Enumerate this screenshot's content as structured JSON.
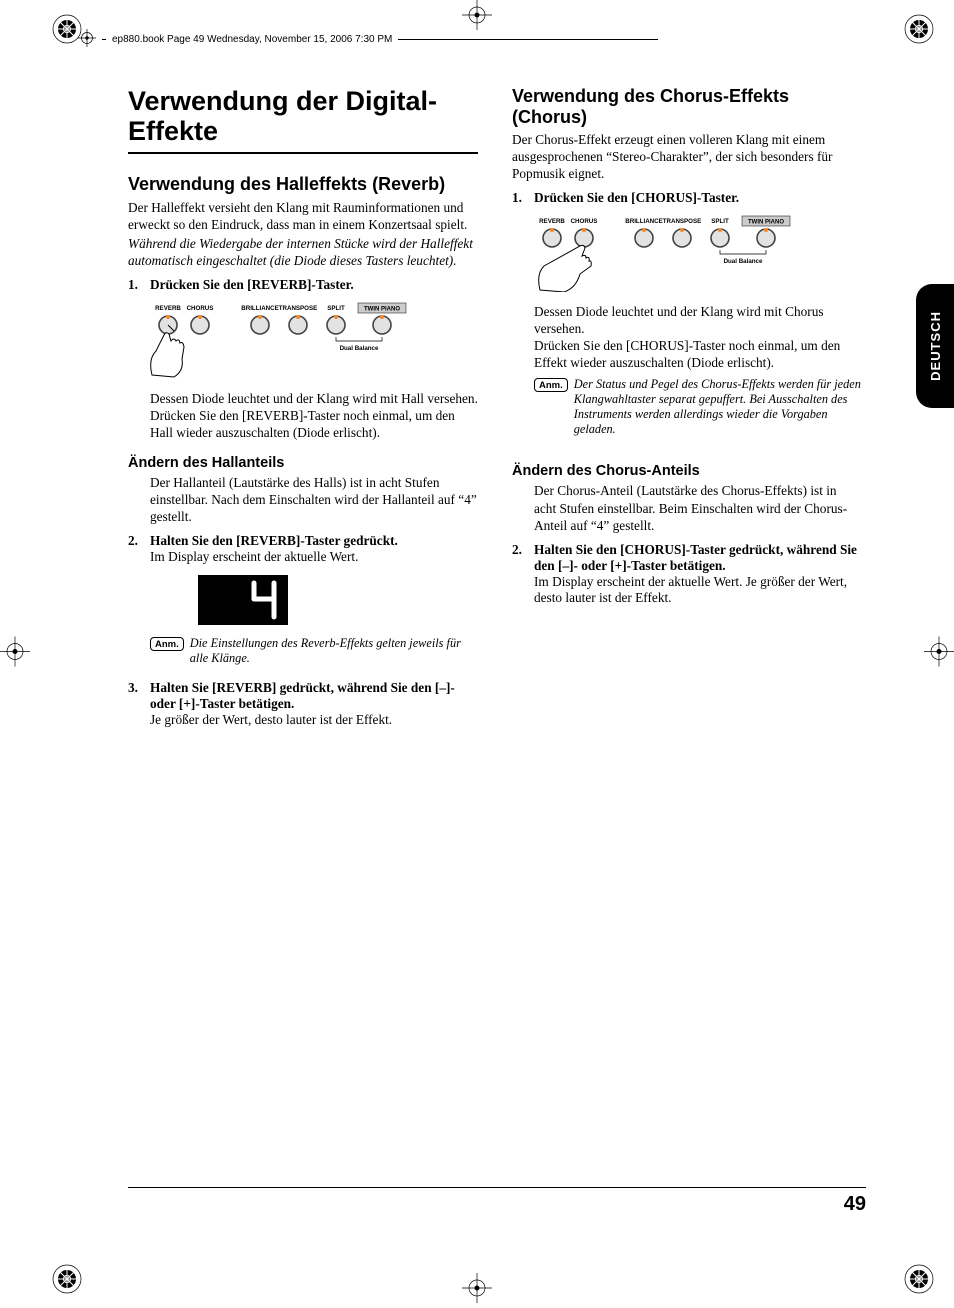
{
  "header_text": "ep880.book  Page 49  Wednesday, November 15, 2006  7:30 PM",
  "lang_tab": "DEUTSCH",
  "page_number": "49",
  "colors": {
    "text": "#000000",
    "bg": "#ffffff",
    "accent": "#000000",
    "button_ring": "#444444",
    "button_face": "#e2e2e2",
    "led_orange": "#f28a2a",
    "twin_box": "#cccccc",
    "display_bg": "#000000",
    "display_fg": "#ffffff"
  },
  "panel": {
    "labels": [
      "REVERB",
      "CHORUS",
      "BRILLIANCE",
      "TRANSPOSE",
      "SPLIT",
      "TWIN PIANO"
    ],
    "sublabel": "Dual Balance",
    "twin_box_label": "TWIN PIANO"
  },
  "display_value": "4",
  "left": {
    "h1": "Verwendung der Digital-Effekte",
    "h2": "Verwendung des Halleffekts (Reverb)",
    "p1": "Der Halleffekt versieht den Klang mit Rauminformationen und erweckt so den Eindruck, dass man in einem Konzertsaal spielt.",
    "p2": "Während die Wiedergabe der internen Stücke wird der Halleffekt automatisch eingeschaltet (die Diode dieses Tasters leuchtet).",
    "s1_label": "1.",
    "s1": "Drücken Sie den [REVERB]-Taster.",
    "after1a": "Dessen Diode leuchtet und der Klang wird mit Hall versehen.",
    "after1b": "Drücken Sie den [REVERB]-Taster noch einmal, um den Hall wieder auszuschalten (Diode erlischt).",
    "h3": "Ändern des Hallanteils",
    "h3p": "Der Hallanteil (Lautstärke des Halls) ist in acht Stufen einstellbar. Nach dem Einschalten wird der Hallanteil auf “4” gestellt.",
    "s2_label": "2.",
    "s2": "Halten Sie den [REVERB]-Taster gedrückt.",
    "s2p": "Im Display erscheint der aktuelle Wert.",
    "note_label": "Anm.",
    "note": "Die Einstellungen des Reverb-Effekts gelten jeweils für alle Klänge.",
    "s3_label": "3.",
    "s3": "Halten Sie [REVERB] gedrückt, während Sie den [–]- oder [+]-Taster betätigen.",
    "s3p": "Je größer der Wert, desto lauter ist der Effekt."
  },
  "right": {
    "h2": "Verwendung des Chorus-Effekts (Chorus)",
    "p1": "Der Chorus-Effekt erzeugt einen volleren Klang mit einem ausgesprochenen “Stereo-Charakter”, der sich besonders für Popmusik eignet.",
    "s1_label": "1.",
    "s1": "Drücken Sie den [CHORUS]-Taster.",
    "after1a": "Dessen Diode leuchtet und der Klang wird mit Chorus versehen.",
    "after1b": "Drücken Sie den [CHORUS]-Taster noch einmal, um den Effekt wieder auszuschalten (Diode erlischt).",
    "note_label": "Anm.",
    "note": "Der Status und Pegel des Chorus-Effekts werden für jeden Klangwahltaster separat gepuffert. Bei Ausschalten des Instruments werden allerdings wieder die Vorgaben geladen.",
    "h3": "Ändern des Chorus-Anteils",
    "h3p": "Der Chorus-Anteil (Lautstärke des Chorus-Effekts) ist in acht Stufen einstellbar. Beim Einschalten wird der Chorus-Anteil auf “4” gestellt.",
    "s2_label": "2.",
    "s2": "Halten Sie den [CHORUS]-Taster gedrückt, während Sie den [–]- oder [+]-Taster betätigen.",
    "s2p": "Im Display erscheint der aktuelle Wert. Je größer der Wert, desto lauter ist der Effekt."
  }
}
